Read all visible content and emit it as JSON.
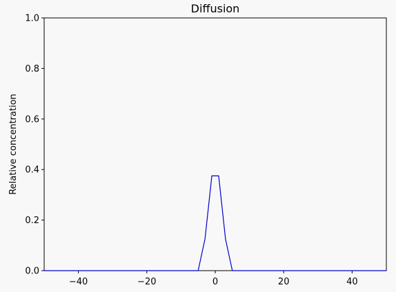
{
  "chart_data": {
    "type": "line",
    "title": "Diffusion",
    "xlabel": "",
    "ylabel": "Relative concentration",
    "xlim": [
      -50,
      50
    ],
    "ylim": [
      0,
      1
    ],
    "x_ticks": [
      -40,
      -20,
      0,
      20,
      40
    ],
    "x_tick_labels": [
      "−40",
      "−20",
      "0",
      "20",
      "40"
    ],
    "y_ticks": [
      0,
      0.2,
      0.4,
      0.6,
      0.8,
      1.0
    ],
    "y_tick_labels": [
      "0.0",
      "0.2",
      "0.4",
      "0.6",
      "0.8",
      "1.0"
    ],
    "grid": false,
    "series_color": "#0000cc",
    "series": [
      {
        "x": [
          -50,
          -5,
          -3,
          -1,
          1,
          3,
          5,
          50
        ],
        "values": [
          0,
          0,
          0.125,
          0.375,
          0.375,
          0.125,
          0,
          0
        ]
      }
    ]
  }
}
